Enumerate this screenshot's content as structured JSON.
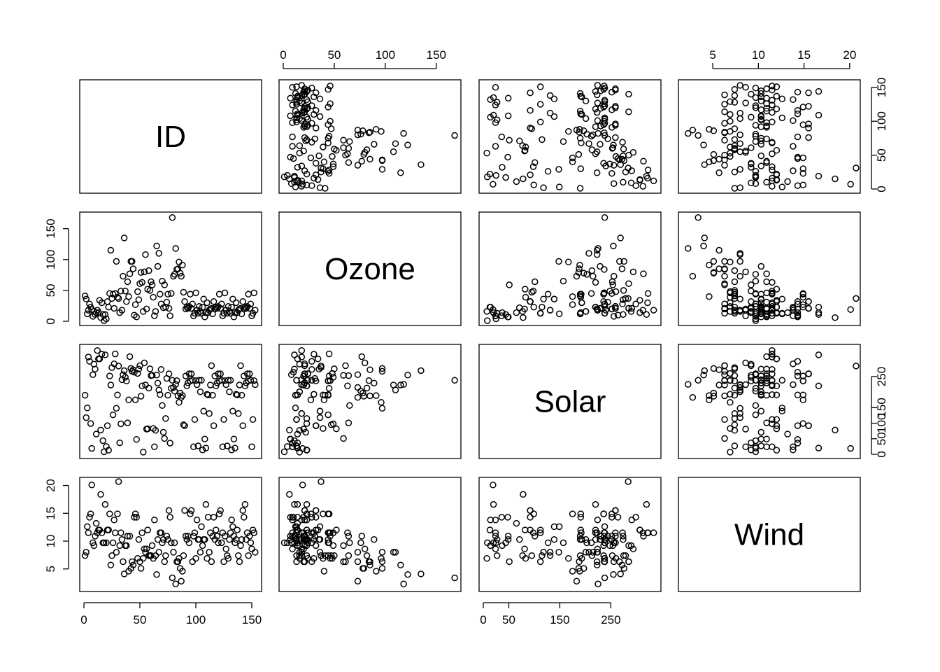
{
  "chart_data": {
    "type": "scatter",
    "variables": [
      "ID",
      "Ozone",
      "Solar",
      "Wind"
    ],
    "ranges": {
      "ID": [
        0,
        155
      ],
      "Ozone": [
        0,
        170
      ],
      "Solar": [
        0,
        340
      ],
      "Wind": [
        1.7,
        20.7
      ]
    },
    "ticks": {
      "ID": [
        0,
        50,
        100,
        150
      ],
      "Ozone": [
        0,
        50,
        100,
        150
      ],
      "Solar": [
        0,
        50,
        150,
        250
      ],
      "Wind": [
        5,
        10,
        15,
        20
      ]
    },
    "right_ticks": {
      "ID": [
        0,
        50,
        100,
        150
      ],
      "Solar": [
        0,
        50,
        100,
        150,
        250
      ]
    },
    "observations": [
      [
        1,
        41,
        190,
        7.4
      ],
      [
        2,
        36,
        118,
        8.0
      ],
      [
        3,
        12,
        149,
        12.6
      ],
      [
        4,
        18,
        313,
        11.5
      ],
      [
        5,
        28,
        299,
        14.3
      ],
      [
        6,
        23,
        99,
        14.9
      ],
      [
        7,
        19,
        19,
        20.1
      ],
      [
        8,
        8,
        256,
        9.7
      ],
      [
        9,
        16,
        290,
        9.2
      ],
      [
        10,
        11,
        274,
        10.9
      ],
      [
        11,
        14,
        65,
        13.2
      ],
      [
        12,
        18,
        334,
        11.5
      ],
      [
        13,
        14,
        307,
        12.0
      ],
      [
        14,
        34,
        307,
        12.0
      ],
      [
        15,
        6,
        78,
        18.4
      ],
      [
        16,
        30,
        322,
        11.5
      ],
      [
        17,
        11,
        44,
        9.7
      ],
      [
        18,
        1,
        8,
        9.7
      ],
      [
        19,
        11,
        320,
        16.6
      ],
      [
        20,
        4,
        25,
        9.7
      ],
      [
        21,
        32,
        92,
        12.0
      ],
      [
        22,
        23,
        13,
        12.0
      ],
      [
        23,
        45,
        252,
        14.9
      ],
      [
        24,
        115,
        223,
        5.7
      ],
      [
        25,
        37,
        279,
        7.4
      ],
      [
        26,
        44,
        127,
        9.7
      ],
      [
        27,
        21,
        291,
        13.8
      ],
      [
        28,
        45,
        323,
        11.5
      ],
      [
        29,
        97,
        148,
        8.0
      ],
      [
        30,
        39,
        191,
        14.9
      ],
      [
        31,
        37,
        284,
        20.7
      ],
      [
        32,
        14,
        37,
        9.2
      ],
      [
        33,
        49,
        98,
        11.5
      ],
      [
        34,
        18,
        240,
        10.3
      ],
      [
        35,
        73,
        256,
        6.3
      ],
      [
        36,
        135,
        269,
        4.1
      ],
      [
        37,
        49,
        248,
        9.2
      ],
      [
        38,
        32,
        236,
        9.2
      ],
      [
        39,
        64,
        101,
        10.9
      ],
      [
        40,
        40,
        175,
        4.6
      ],
      [
        41,
        77,
        314,
        10.9
      ],
      [
        42,
        97,
        276,
        5.1
      ],
      [
        43,
        97,
        267,
        6.3
      ],
      [
        44,
        85,
        272,
        5.7
      ],
      [
        45,
        10,
        264,
        14.3
      ],
      [
        46,
        27,
        175,
        14.9
      ],
      [
        47,
        7,
        48,
        14.3
      ],
      [
        48,
        48,
        260,
        6.9
      ],
      [
        49,
        35,
        274,
        10.3
      ],
      [
        50,
        61,
        285,
        6.3
      ],
      [
        51,
        79,
        187,
        5.1
      ],
      [
        52,
        63,
        220,
        11.5
      ],
      [
        53,
        16,
        7,
        6.9
      ],
      [
        54,
        80,
        294,
        8.6
      ],
      [
        55,
        108,
        223,
        8.0
      ],
      [
        56,
        20,
        81,
        8.6
      ],
      [
        57,
        52,
        82,
        12.0
      ],
      [
        58,
        82,
        213,
        7.4
      ],
      [
        59,
        50,
        275,
        7.4
      ],
      [
        60,
        64,
        253,
        7.4
      ],
      [
        61,
        59,
        254,
        9.2
      ],
      [
        62,
        39,
        83,
        6.9
      ],
      [
        63,
        9,
        24,
        13.8
      ],
      [
        64,
        16,
        77,
        7.4
      ],
      [
        65,
        122,
        255,
        4.0
      ],
      [
        66,
        89,
        229,
        10.3
      ],
      [
        67,
        110,
        207,
        8.0
      ],
      [
        68,
        44,
        192,
        11.5
      ],
      [
        69,
        28,
        273,
        11.5
      ],
      [
        70,
        65,
        157,
        9.7
      ],
      [
        71,
        22,
        71,
        10.3
      ],
      [
        72,
        59,
        51,
        6.3
      ],
      [
        73,
        23,
        115,
        7.4
      ],
      [
        74,
        31,
        244,
        10.9
      ],
      [
        75,
        44,
        190,
        10.3
      ],
      [
        76,
        21,
        259,
        15.5
      ],
      [
        77,
        9,
        36,
        14.3
      ],
      [
        78,
        45,
        212,
        9.7
      ],
      [
        79,
        168,
        238,
        3.4
      ],
      [
        80,
        73,
        215,
        8.0
      ],
      [
        81,
        76,
        203,
        9.7
      ],
      [
        82,
        118,
        225,
        2.3
      ],
      [
        83,
        84,
        237,
        6.3
      ],
      [
        84,
        85,
        188,
        6.3
      ],
      [
        85,
        96,
        167,
        6.9
      ],
      [
        86,
        78,
        197,
        5.1
      ],
      [
        87,
        73,
        183,
        2.8
      ],
      [
        88,
        91,
        189,
        4.6
      ],
      [
        89,
        47,
        95,
        7.4
      ],
      [
        90,
        32,
        92,
        15.5
      ],
      [
        91,
        20,
        252,
        10.9
      ],
      [
        92,
        23,
        220,
        10.3
      ],
      [
        93,
        21,
        230,
        10.9
      ],
      [
        94,
        24,
        259,
        9.7
      ],
      [
        95,
        44,
        236,
        14.9
      ],
      [
        96,
        21,
        259,
        15.5
      ],
      [
        97,
        28,
        238,
        6.3
      ],
      [
        98,
        9,
        24,
        10.9
      ],
      [
        99,
        13,
        112,
        11.5
      ],
      [
        100,
        46,
        237,
        6.9
      ],
      [
        101,
        18,
        224,
        13.8
      ],
      [
        102,
        13,
        27,
        10.3
      ],
      [
        103,
        24,
        238,
        10.3
      ],
      [
        104,
        16,
        201,
        8.0
      ],
      [
        105,
        13,
        238,
        12.6
      ],
      [
        106,
        23,
        14,
        9.2
      ],
      [
        107,
        36,
        139,
        10.3
      ],
      [
        108,
        7,
        49,
        10.3
      ],
      [
        109,
        14,
        20,
        16.6
      ],
      [
        110,
        30,
        193,
        6.9
      ],
      [
        111,
        14,
        191,
        14.3
      ],
      [
        112,
        18,
        131,
        8.0
      ],
      [
        113,
        20,
        223,
        11.5
      ],
      [
        114,
        21,
        285,
        6.3
      ],
      [
        115,
        12,
        190,
        10.9
      ],
      [
        116,
        32,
        92,
        14.3
      ],
      [
        117,
        20,
        252,
        10.3
      ],
      [
        118,
        23,
        220,
        12.0
      ],
      [
        119,
        21,
        230,
        10.9
      ],
      [
        120,
        24,
        259,
        9.7
      ],
      [
        121,
        44,
        236,
        14.9
      ],
      [
        122,
        21,
        259,
        15.5
      ],
      [
        123,
        28,
        238,
        9.7
      ],
      [
        124,
        9,
        24,
        11.5
      ],
      [
        125,
        13,
        112,
        6.3
      ],
      [
        126,
        46,
        237,
        10.9
      ],
      [
        127,
        18,
        224,
        8.6
      ],
      [
        128,
        13,
        27,
        7.4
      ],
      [
        129,
        24,
        238,
        6.9
      ],
      [
        130,
        16,
        201,
        10.3
      ],
      [
        131,
        13,
        238,
        11.5
      ],
      [
        132,
        23,
        14,
        13.8
      ],
      [
        133,
        36,
        139,
        12.6
      ],
      [
        134,
        7,
        49,
        10.9
      ],
      [
        135,
        14,
        20,
        9.7
      ],
      [
        136,
        30,
        193,
        10.3
      ],
      [
        137,
        14,
        191,
        12.0
      ],
      [
        138,
        18,
        131,
        7.4
      ],
      [
        139,
        20,
        223,
        6.3
      ],
      [
        140,
        21,
        285,
        9.2
      ],
      [
        141,
        12,
        190,
        10.3
      ],
      [
        142,
        32,
        92,
        15.5
      ],
      [
        143,
        20,
        252,
        14.3
      ],
      [
        144,
        23,
        220,
        16.6
      ],
      [
        145,
        21,
        230,
        10.3
      ],
      [
        146,
        24,
        259,
        11.5
      ],
      [
        147,
        44,
        236,
        7.4
      ],
      [
        148,
        21,
        259,
        10.9
      ],
      [
        149,
        28,
        238,
        9.7
      ],
      [
        150,
        9,
        24,
        8.6
      ],
      [
        151,
        13,
        112,
        12.0
      ],
      [
        152,
        46,
        237,
        11.5
      ],
      [
        153,
        18,
        224,
        8.0
      ]
    ]
  }
}
